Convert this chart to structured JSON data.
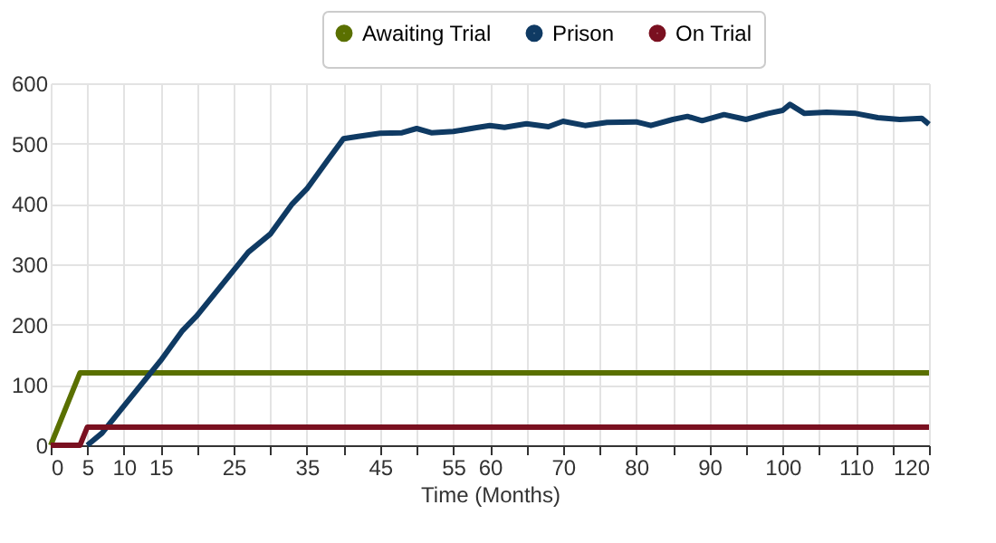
{
  "chart_data": {
    "type": "line",
    "xlabel": "Time (Months)",
    "series": [
      {
        "name": "Awaiting Trial",
        "color": "#5a7000",
        "x": [
          0,
          4,
          120
        ],
        "values": [
          0,
          120,
          120
        ]
      },
      {
        "name": "Prison",
        "color": "#0f3a63",
        "x": [
          5,
          7,
          10,
          13,
          15,
          18,
          20,
          25,
          27,
          30,
          33,
          35,
          38,
          40,
          42,
          45,
          48,
          50,
          52,
          55,
          58,
          60,
          62,
          65,
          68,
          70,
          73,
          76,
          80,
          82,
          85,
          87,
          89,
          92,
          95,
          98,
          100,
          101,
          103,
          106,
          110,
          113,
          116,
          119,
          120
        ],
        "values": [
          0,
          20,
          65,
          110,
          140,
          190,
          215,
          290,
          320,
          350,
          400,
          425,
          475,
          508,
          512,
          517,
          518,
          525,
          518,
          520,
          526,
          530,
          527,
          533,
          528,
          537,
          530,
          535,
          536,
          530,
          540,
          545,
          538,
          548,
          540,
          550,
          555,
          565,
          550,
          552,
          550,
          543,
          540,
          542,
          532
        ]
      },
      {
        "name": "On Trial",
        "color": "#7a1020",
        "x": [
          0,
          4,
          5,
          120
        ],
        "values": [
          0,
          0,
          30,
          30
        ]
      }
    ],
    "xlim": [
      0,
      120
    ],
    "xticks": [
      0,
      5,
      10,
      15,
      {
        "value": 20,
        "label": null
      },
      25,
      {
        "value": 30,
        "label": null
      },
      35,
      {
        "value": 40,
        "label": null
      },
      45,
      {
        "value": 50,
        "label": null
      },
      55,
      60,
      {
        "value": 65,
        "label": null
      },
      70,
      {
        "value": 75,
        "label": null
      },
      80,
      {
        "value": 85,
        "label": null
      },
      90,
      {
        "value": 95,
        "label": null
      },
      100,
      {
        "value": 105,
        "label": null
      },
      110,
      {
        "value": 115,
        "label": null
      },
      120
    ],
    "ylim": [
      0,
      600
    ],
    "yticks": [
      0,
      100,
      200,
      300,
      400,
      500,
      600
    ],
    "grid": true,
    "legend": "top",
    "marker": "none",
    "line_style": "solid"
  }
}
